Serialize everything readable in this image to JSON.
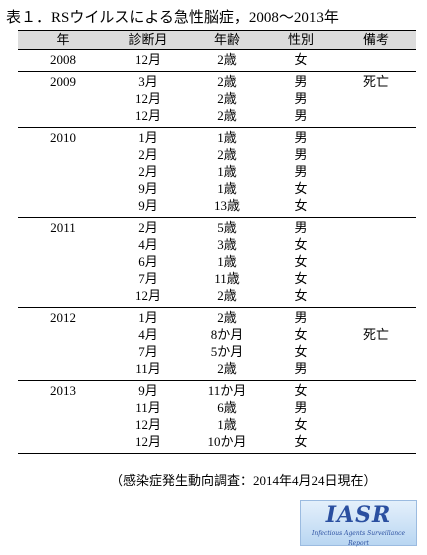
{
  "title": "表１．RSウイルスによる急性脳症，2008～2013年",
  "table": {
    "headers": [
      "年",
      "診断月",
      "年齢",
      "性別",
      "備考"
    ],
    "groups": [
      {
        "year": "2008",
        "rows": [
          [
            "12月",
            "2歳",
            "女"
          ]
        ]
      },
      {
        "year": "2009",
        "rows": [
          [
            "3月",
            "2歳",
            "男",
            "死亡"
          ],
          [
            "12月",
            "2歳",
            "男"
          ],
          [
            "12月",
            "2歳",
            "男"
          ]
        ]
      },
      {
        "year": "2010",
        "rows": [
          [
            "1月",
            "1歳",
            "男"
          ],
          [
            "2月",
            "2歳",
            "男"
          ],
          [
            "2月",
            "1歳",
            "男"
          ],
          [
            "9月",
            "1歳",
            "女"
          ],
          [
            "9月",
            "13歳",
            "女"
          ]
        ]
      },
      {
        "year": "2011",
        "rows": [
          [
            "2月",
            "5歳",
            "男"
          ],
          [
            "4月",
            "3歳",
            "女"
          ],
          [
            "6月",
            "1歳",
            "女"
          ],
          [
            "7月",
            "11歳",
            "女"
          ],
          [
            "12月",
            "2歳",
            "女"
          ]
        ]
      },
      {
        "year": "2012",
        "rows": [
          [
            "1月",
            "2歳",
            "男"
          ],
          [
            "4月",
            "8か月",
            "女",
            "死亡"
          ],
          [
            "7月",
            "5か月",
            "女"
          ],
          [
            "11月",
            "2歳",
            "男"
          ]
        ]
      },
      {
        "year": "2013",
        "rows": [
          [
            "9月",
            "11か月",
            "女"
          ],
          [
            "11月",
            "6歳",
            "男"
          ],
          [
            "12月",
            "1歳",
            "女"
          ],
          [
            "12月",
            "10か月",
            "女"
          ]
        ]
      }
    ]
  },
  "footnote": "（感染症発生動向調査：2014年4月24日現在）",
  "logo": {
    "name": "IASR",
    "subtitle": "Infectious Agents Surveillance Report"
  }
}
